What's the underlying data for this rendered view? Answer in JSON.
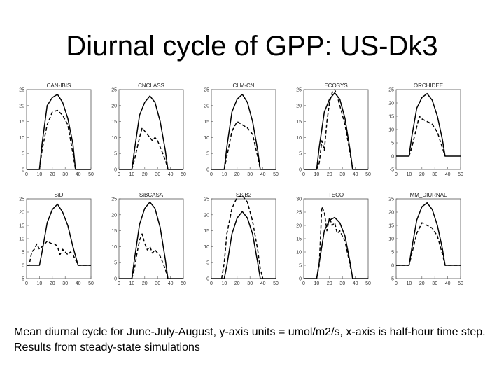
{
  "slide": {
    "title": "Diurnal cycle of GPP: US-Dk3",
    "caption": "Mean diurnal cycle for June-July-August, y-axis units = umol/m2/s, x-axis is half-hour time step. Results from steady-state simulations"
  },
  "colors": {
    "line": "#000000",
    "background": "#ffffff"
  },
  "chart_data": [
    {
      "type": "line",
      "title": "CAN-IBIS",
      "xlim": [
        0,
        50
      ],
      "ylim": [
        0,
        25
      ],
      "xticks": [
        0,
        10,
        20,
        30,
        40,
        50
      ],
      "yticks": [
        0,
        5,
        10,
        15,
        20,
        25
      ],
      "series": [
        {
          "style": "solid",
          "x": [
            0,
            10,
            12,
            16,
            20,
            24,
            28,
            32,
            36,
            38,
            40,
            50
          ],
          "y": [
            0,
            0,
            8,
            20,
            22.5,
            23.5,
            21,
            16,
            8,
            0,
            0,
            0
          ]
        },
        {
          "style": "dashed",
          "x": [
            10,
            12,
            16,
            20,
            24,
            28,
            32,
            36,
            38
          ],
          "y": [
            0,
            6,
            14,
            18,
            18.5,
            17,
            14,
            5,
            0
          ]
        }
      ]
    },
    {
      "type": "line",
      "title": "CNCLASS",
      "xlim": [
        0,
        50
      ],
      "ylim": [
        0,
        25
      ],
      "xticks": [
        0,
        10,
        20,
        30,
        40,
        50
      ],
      "yticks": [
        0,
        5,
        10,
        15,
        20,
        25
      ],
      "series": [
        {
          "style": "solid",
          "x": [
            0,
            10,
            12,
            16,
            20,
            24,
            28,
            32,
            36,
            38,
            50
          ],
          "y": [
            0,
            0,
            6,
            17,
            21,
            23,
            21,
            15,
            6,
            0,
            0
          ]
        },
        {
          "style": "dashed",
          "x": [
            10,
            12,
            16,
            18,
            20,
            22,
            24,
            26,
            28,
            30,
            32,
            36,
            38
          ],
          "y": [
            0,
            3,
            10,
            13,
            12,
            11,
            10,
            9,
            10,
            9,
            7,
            3,
            0
          ]
        }
      ]
    },
    {
      "type": "line",
      "title": "CLM-CN",
      "xlim": [
        0,
        50
      ],
      "ylim": [
        0,
        25
      ],
      "xticks": [
        0,
        10,
        20,
        30,
        40,
        50
      ],
      "yticks": [
        0,
        5,
        10,
        15,
        20,
        25
      ],
      "series": [
        {
          "style": "solid",
          "x": [
            0,
            10,
            12,
            16,
            20,
            24,
            28,
            32,
            36,
            38,
            50
          ],
          "y": [
            0,
            0,
            7,
            18,
            22,
            23.5,
            21,
            15,
            6,
            0,
            0
          ]
        },
        {
          "style": "dashed",
          "x": [
            10,
            12,
            16,
            20,
            24,
            28,
            32,
            36,
            38
          ],
          "y": [
            0,
            4,
            12,
            15,
            14,
            13,
            11,
            4,
            0
          ]
        }
      ]
    },
    {
      "type": "line",
      "title": "ECOSYS",
      "xlim": [
        0,
        50
      ],
      "ylim": [
        0,
        25
      ],
      "xticks": [
        0,
        10,
        20,
        30,
        40,
        50
      ],
      "yticks": [
        0,
        5,
        10,
        15,
        20,
        25
      ],
      "series": [
        {
          "style": "solid",
          "x": [
            0,
            10,
            12,
            16,
            20,
            24,
            28,
            32,
            36,
            38,
            50
          ],
          "y": [
            0,
            0,
            7,
            18,
            22,
            24,
            22,
            16,
            6,
            0,
            0
          ]
        },
        {
          "style": "dashed",
          "x": [
            10,
            12,
            14,
            16,
            18,
            20,
            22,
            24,
            26,
            28,
            32,
            36,
            38
          ],
          "y": [
            0,
            2,
            9,
            6,
            15,
            21,
            24,
            25,
            23,
            20,
            14,
            5,
            0
          ]
        }
      ]
    },
    {
      "type": "line",
      "title": "ORCHIDEE",
      "xlim": [
        0,
        50
      ],
      "ylim": [
        -5,
        25
      ],
      "xticks": [
        0,
        10,
        20,
        30,
        40,
        50
      ],
      "yticks": [
        -5,
        0,
        5,
        10,
        15,
        20,
        25
      ],
      "series": [
        {
          "style": "solid",
          "x": [
            0,
            10,
            12,
            16,
            20,
            24,
            28,
            32,
            36,
            38,
            50
          ],
          "y": [
            0,
            0,
            7,
            18,
            22,
            23.5,
            21,
            15,
            6,
            0,
            0
          ]
        },
        {
          "style": "dashed",
          "x": [
            10,
            12,
            16,
            18,
            20,
            24,
            28,
            32,
            36,
            38
          ],
          "y": [
            0,
            3,
            11,
            15,
            14,
            13,
            12,
            9,
            3,
            0
          ]
        }
      ]
    },
    {
      "type": "line",
      "title": "SiD",
      "xlim": [
        0,
        50
      ],
      "ylim": [
        -5,
        25
      ],
      "xticks": [
        0,
        10,
        20,
        30,
        40,
        50
      ],
      "yticks": [
        -5,
        0,
        5,
        10,
        15,
        20,
        25
      ],
      "series": [
        {
          "style": "solid",
          "x": [
            0,
            10,
            12,
            16,
            20,
            24,
            28,
            32,
            36,
            40,
            50
          ],
          "y": [
            0,
            0,
            5,
            16,
            21,
            23,
            20,
            15,
            7,
            0,
            0
          ]
        },
        {
          "style": "dashed",
          "x": [
            0,
            2,
            4,
            6,
            8,
            10,
            12,
            14,
            16,
            18,
            20,
            22,
            24,
            26,
            28,
            30,
            32,
            34,
            36,
            40,
            50
          ],
          "y": [
            0,
            0,
            5,
            6,
            8,
            6,
            7,
            8,
            9,
            8.5,
            8,
            8,
            7,
            4,
            6,
            5,
            4,
            5,
            4,
            0,
            0
          ]
        }
      ]
    },
    {
      "type": "line",
      "title": "SiBCASA",
      "xlim": [
        0,
        50
      ],
      "ylim": [
        0,
        25
      ],
      "xticks": [
        0,
        10,
        20,
        30,
        40,
        50
      ],
      "yticks": [
        0,
        5,
        10,
        15,
        20,
        25
      ],
      "series": [
        {
          "style": "solid",
          "x": [
            0,
            10,
            12,
            16,
            20,
            24,
            28,
            32,
            36,
            38,
            50
          ],
          "y": [
            0,
            0,
            6,
            17,
            22,
            24,
            22,
            16,
            6,
            0,
            0
          ]
        },
        {
          "style": "dashed",
          "x": [
            10,
            12,
            14,
            16,
            18,
            20,
            22,
            24,
            26,
            28,
            30,
            32,
            36,
            38
          ],
          "y": [
            0,
            3,
            8,
            12,
            14,
            11,
            9,
            10,
            8,
            9,
            8,
            7,
            3,
            0
          ]
        }
      ]
    },
    {
      "type": "line",
      "title": "SSiB2",
      "xlim": [
        0,
        50
      ],
      "ylim": [
        0,
        25
      ],
      "xticks": [
        0,
        10,
        20,
        30,
        40,
        50
      ],
      "yticks": [
        0,
        5,
        10,
        15,
        20,
        25
      ],
      "series": [
        {
          "style": "solid",
          "x": [
            0,
            10,
            12,
            16,
            20,
            24,
            28,
            32,
            36,
            38,
            50
          ],
          "y": [
            0,
            0,
            4,
            14,
            19,
            21,
            19,
            14,
            5,
            0,
            0
          ]
        },
        {
          "style": "dashed",
          "x": [
            8,
            10,
            12,
            16,
            20,
            24,
            28,
            32,
            36,
            38,
            40
          ],
          "y": [
            0,
            5,
            14,
            22,
            25.5,
            26,
            24,
            18,
            9,
            3,
            0
          ]
        }
      ]
    },
    {
      "type": "line",
      "title": "TECO",
      "xlim": [
        0,
        50
      ],
      "ylim": [
        0,
        30
      ],
      "xticks": [
        0,
        10,
        20,
        30,
        40,
        50
      ],
      "yticks": [
        0,
        5,
        10,
        15,
        20,
        25,
        30
      ],
      "series": [
        {
          "style": "solid",
          "x": [
            0,
            10,
            12,
            16,
            20,
            24,
            28,
            32,
            36,
            38,
            50
          ],
          "y": [
            0,
            0,
            6,
            18,
            22,
            23,
            21,
            16,
            6,
            0,
            0
          ]
        },
        {
          "style": "dashed",
          "x": [
            10,
            12,
            14,
            16,
            18,
            20,
            22,
            24,
            26,
            28,
            30,
            32,
            36,
            38
          ],
          "y": [
            0,
            5,
            27,
            25,
            18,
            23,
            20,
            21,
            17,
            18,
            16,
            14,
            5,
            0
          ]
        }
      ]
    },
    {
      "type": "line",
      "title": "MM_DIURNAL",
      "xlim": [
        0,
        50
      ],
      "ylim": [
        -5,
        25
      ],
      "xticks": [
        0,
        10,
        20,
        30,
        40,
        50
      ],
      "yticks": [
        -5,
        0,
        5,
        10,
        15,
        20,
        25
      ],
      "series": [
        {
          "style": "solid",
          "x": [
            0,
            10,
            12,
            16,
            20,
            24,
            28,
            32,
            36,
            38,
            50
          ],
          "y": [
            0,
            0,
            6,
            17,
            22,
            23.5,
            21,
            15,
            6,
            0,
            0
          ]
        },
        {
          "style": "dashed",
          "x": [
            0,
            10,
            12,
            16,
            20,
            24,
            28,
            32,
            36,
            38,
            50
          ],
          "y": [
            0,
            0,
            4,
            12,
            16,
            15,
            14,
            11,
            4,
            0,
            0
          ]
        }
      ]
    }
  ]
}
